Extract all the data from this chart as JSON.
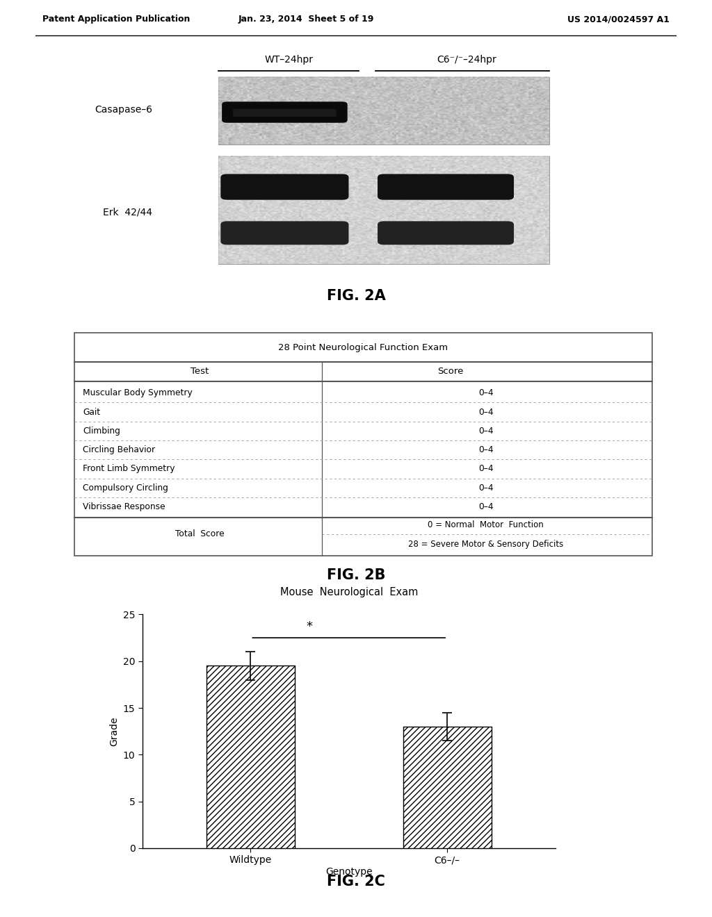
{
  "page_header_left": "Patent Application Publication",
  "page_header_mid": "Jan. 23, 2014  Sheet 5 of 19",
  "page_header_right": "US 2014/0024597 A1",
  "fig2a_label": "FIG. 2A",
  "fig2a_col1": "WT–24hpr",
  "fig2a_col2": "C6⁻/⁻–24hpr",
  "fig2a_row1_label": "Casapase–6",
  "fig2a_row2_label": "Erk  42/44",
  "fig2b_label": "FIG. 2B",
  "fig2b_title": "28 Point Neurological Function Exam",
  "fig2b_col_test": "Test",
  "fig2b_col_score": "Score",
  "fig2b_rows": [
    [
      "Muscular Body Symmetry",
      "0–4"
    ],
    [
      "Gait",
      "0–4"
    ],
    [
      "Climbing",
      "0–4"
    ],
    [
      "Circling Behavior",
      "0–4"
    ],
    [
      "Front Limb Symmetry",
      "0–4"
    ],
    [
      "Compulsory Circling",
      "0–4"
    ],
    [
      "Vibrissae Response",
      "0–4"
    ]
  ],
  "fig2b_total_label": "Total  Score",
  "fig2b_total_score1": "0 = Normal  Motor  Function",
  "fig2b_total_score2": "28 = Severe Motor & Sensory Deficits",
  "fig2c_label": "FIG. 2C",
  "fig2c_title": "Mouse  Neurological  Exam",
  "fig2c_categories": [
    "Wildtype",
    "C6–/–"
  ],
  "fig2c_values": [
    19.5,
    13.0
  ],
  "fig2c_errors": [
    1.5,
    1.5
  ],
  "fig2c_xlabel": "Genotype",
  "fig2c_ylabel": "Grade",
  "fig2c_ylim": [
    0,
    25
  ],
  "fig2c_yticks": [
    0,
    5,
    10,
    15,
    20,
    25
  ],
  "fig2c_bar_color": "#ffffff",
  "fig2c_bar_edgecolor": "#000000",
  "fig2c_sig_text": "*",
  "background_color": "#ffffff",
  "text_color": "#000000",
  "blot_bg_color": "#bbbbbb",
  "blot_band_dark": "#111111",
  "blot_band_mid": "#444444"
}
